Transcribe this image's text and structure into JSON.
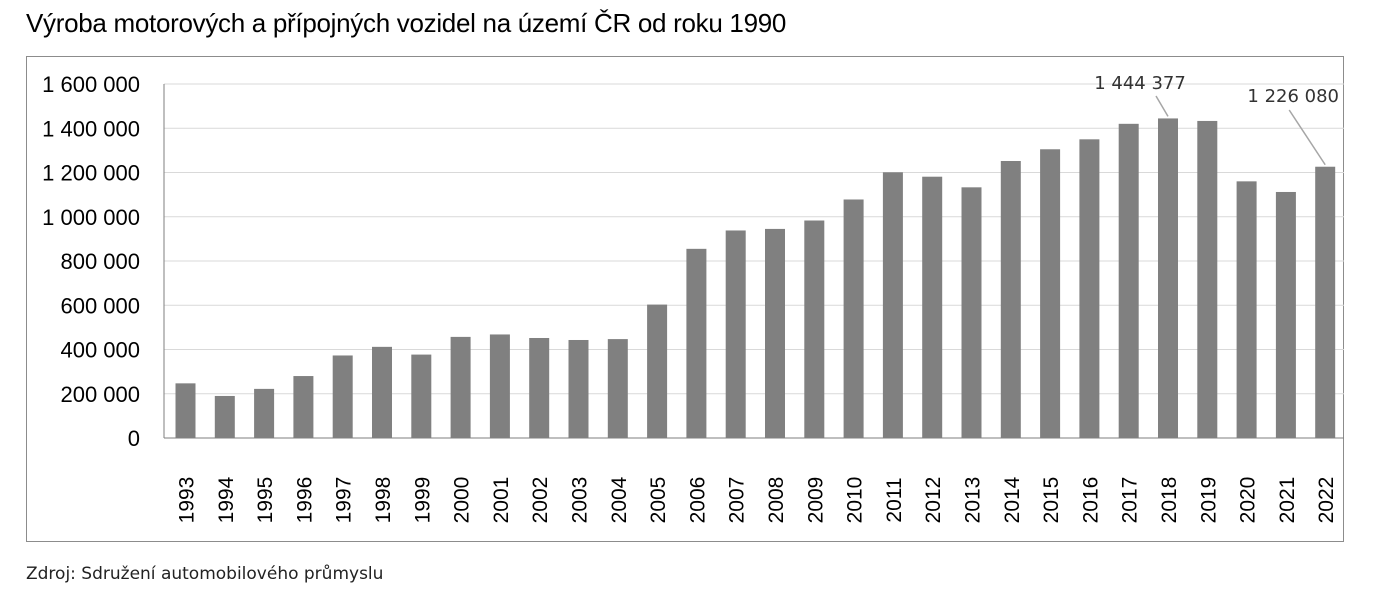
{
  "title": "Výroba motorových a přípojných vozidel na území ČR od roku 1990",
  "source": "Zdroj: Sdružení automobilového průmyslu",
  "colors": {
    "bar": "#808080",
    "grid": "#d9d9d9",
    "axis": "#7f7f7f",
    "text": "#000000",
    "leader": "#a6a6a6"
  },
  "chart_data": {
    "type": "bar",
    "title": "Výroba motorových a přípojných vozidel na území ČR od roku 1990",
    "xlabel": "",
    "ylabel": "",
    "ylim": [
      0,
      1600000
    ],
    "yticks": [
      0,
      200000,
      400000,
      600000,
      800000,
      1000000,
      1200000,
      1400000,
      1600000
    ],
    "ytick_labels": [
      "0",
      "200 000",
      "400 000",
      "600 000",
      "800 000",
      "1 000 000",
      "1 200 000",
      "1 400 000",
      "1 600 000"
    ],
    "grid": true,
    "legend": "none",
    "categories": [
      "1993",
      "1994",
      "1995",
      "1996",
      "1997",
      "1998",
      "1999",
      "2000",
      "2001",
      "2002",
      "2003",
      "2004",
      "2005",
      "2006",
      "2007",
      "2008",
      "2009",
      "2010",
      "2011",
      "2012",
      "2013",
      "2014",
      "2015",
      "2016",
      "2017",
      "2018",
      "2019",
      "2020",
      "2021",
      "2022"
    ],
    "values": [
      247000,
      190000,
      222000,
      280000,
      373000,
      412000,
      377000,
      457000,
      468000,
      452000,
      443000,
      447000,
      603000,
      855000,
      938000,
      945000,
      983000,
      1078000,
      1201000,
      1181000,
      1133000,
      1252000,
      1305000,
      1350000,
      1420000,
      1444377,
      1433000,
      1160000,
      1112000,
      1226080
    ],
    "annotations": [
      {
        "category": "2018",
        "text": "1 444 377"
      },
      {
        "category": "2022",
        "text": "1 226 080"
      }
    ]
  }
}
